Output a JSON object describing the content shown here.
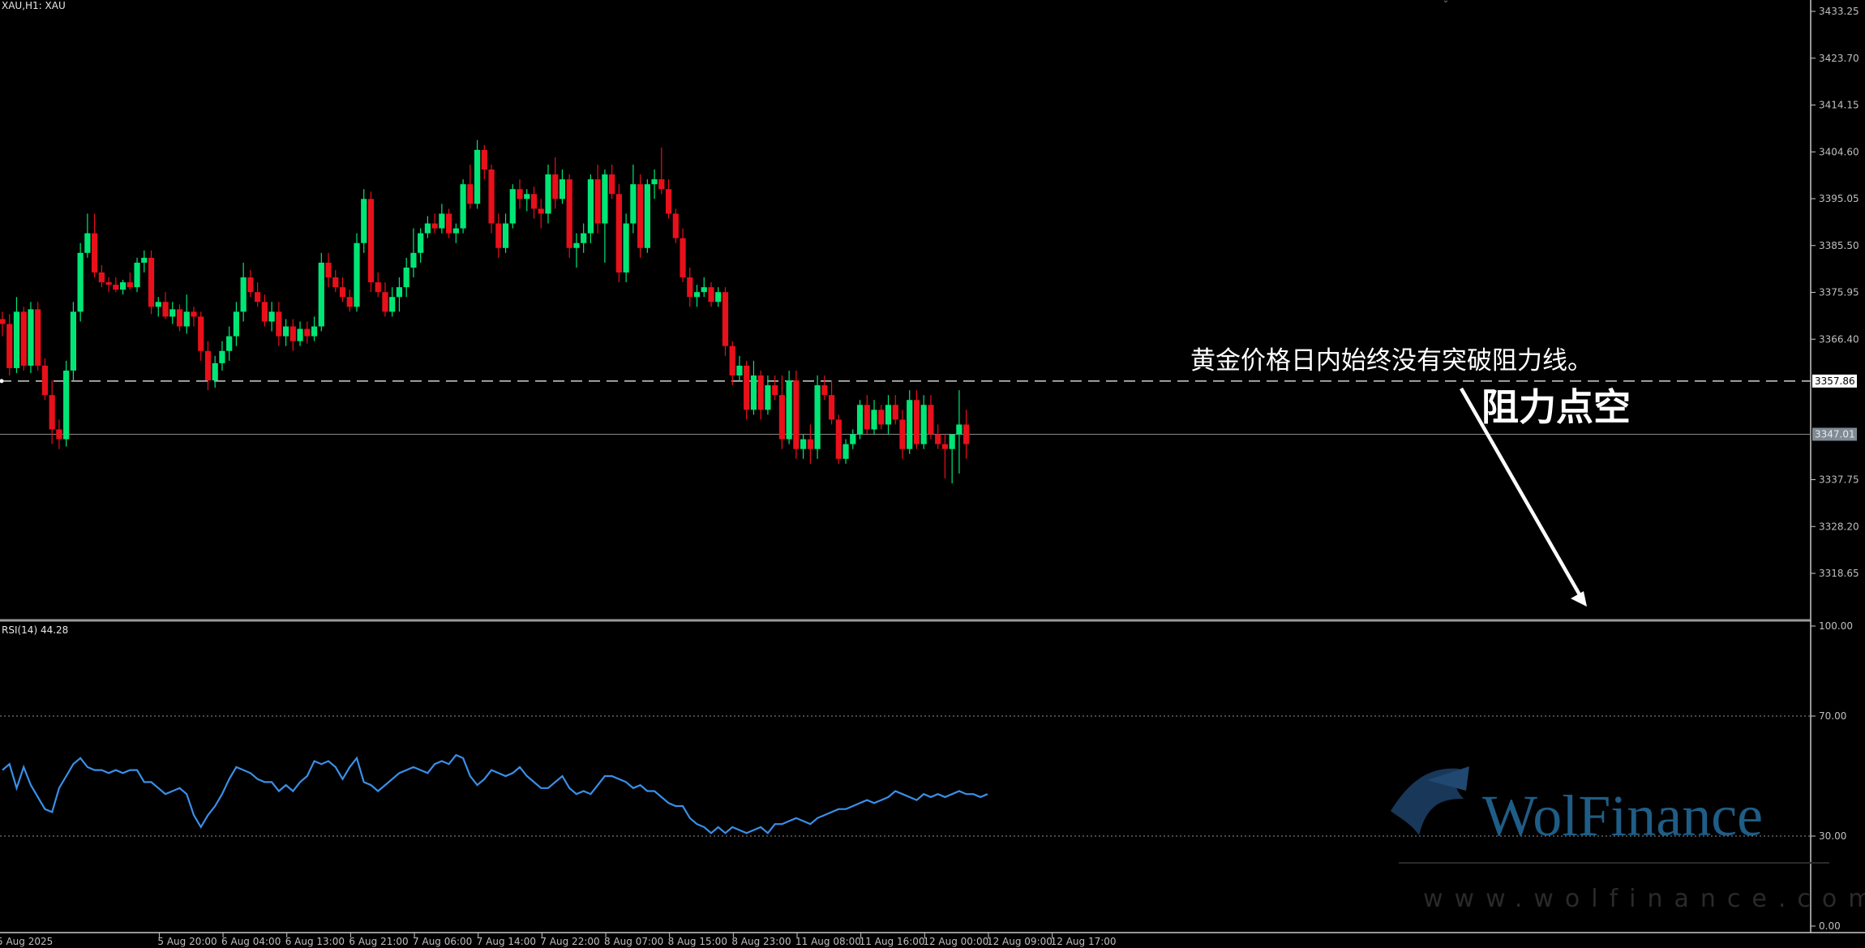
{
  "main_label": "XAU,H1:  XAU",
  "rsi_label": "RSI(14) 44.28",
  "annotation_line1": "黄金价格日内始终没有突破阻力线。",
  "annotation_line2": "阻力点空",
  "watermark_brand": "WolFinance",
  "watermark_url": "www.wolfinance.com",
  "price_axis_ticks": [
    "3433.25",
    "3423.70",
    "3414.15",
    "3404.60",
    "3395.05",
    "3385.50",
    "3375.95",
    "3366.40",
    "3337.75",
    "3328.20",
    "3318.65"
  ],
  "rsi_axis_ticks": [
    "100.00",
    "70.00",
    "30.00",
    "0.00"
  ],
  "resistance_price": "3357.86",
  "current_price": "3347.01",
  "time_axis_labels": [
    "5 Aug 2025",
    "5 Aug 20:00",
    "6 Aug 04:00",
    "6 Aug 13:00",
    "6 Aug 21:00",
    "7 Aug 06:00",
    "7 Aug 14:00",
    "7 Aug 22:00",
    "8 Aug 07:00",
    "8 Aug 15:00",
    "8 Aug 23:00",
    "11 Aug 08:00",
    "11 Aug 16:00",
    "12 Aug 00:00",
    "12 Aug 09:00",
    "12 Aug 17:00"
  ],
  "colors": {
    "background": "#000000",
    "bull": "#00e676",
    "bear": "#e8101a",
    "rsi_line": "#3a8fe8",
    "axis_text": "#bfbfbf",
    "watermark": "#1f5d86"
  },
  "icons": [
    "resistance-dashed-line",
    "down-arrow"
  ],
  "chart_data": [
    {
      "type": "candlestick",
      "title": "XAU,H1:  XAU",
      "xlabel": "",
      "ylabel": "",
      "ylim": [
        3309.1,
        3437.0
      ],
      "resistance_line": 3357.86,
      "current_price_line": 3347.01,
      "ohlc": [
        [
          3370.5,
          3372.0,
          3367.0,
          3369.5
        ],
        [
          3369.5,
          3371.5,
          3359.0,
          3360.5
        ],
        [
          3360.5,
          3375.0,
          3359.5,
          3372.0
        ],
        [
          3372.0,
          3373.0,
          3360.0,
          3361.0
        ],
        [
          3361.0,
          3374.0,
          3359.5,
          3372.5
        ],
        [
          3372.5,
          3374.0,
          3360.0,
          3361.0
        ],
        [
          3361.0,
          3362.5,
          3354.0,
          3355.0
        ],
        [
          3355.0,
          3358.0,
          3345.0,
          3348.0
        ],
        [
          3348.0,
          3350.0,
          3344.0,
          3346.0
        ],
        [
          3346.0,
          3362.0,
          3344.5,
          3360.0
        ],
        [
          3360.0,
          3374.0,
          3358.0,
          3372.0
        ],
        [
          3372.0,
          3386.0,
          3370.0,
          3384.0
        ],
        [
          3384.0,
          3392.0,
          3383.0,
          3388.0
        ],
        [
          3388.0,
          3392.0,
          3379.0,
          3380.0
        ],
        [
          3380.0,
          3381.5,
          3377.0,
          3378.0
        ],
        [
          3378.0,
          3379.0,
          3376.0,
          3377.5
        ],
        [
          3377.5,
          3379.0,
          3376.0,
          3376.5
        ],
        [
          3376.5,
          3378.5,
          3375.5,
          3378.0
        ],
        [
          3378.0,
          3380.0,
          3376.5,
          3377.0
        ],
        [
          3377.0,
          3383.0,
          3376.0,
          3382.0
        ],
        [
          3382.0,
          3384.5,
          3380.0,
          3383.0
        ],
        [
          3383.0,
          3384.5,
          3371.5,
          3373.0
        ],
        [
          3373.0,
          3375.0,
          3371.0,
          3374.0
        ],
        [
          3374.0,
          3376.0,
          3370.5,
          3371.0
        ],
        [
          3371.0,
          3374.0,
          3369.5,
          3372.5
        ],
        [
          3372.5,
          3373.5,
          3368.0,
          3369.0
        ],
        [
          3369.0,
          3375.5,
          3367.5,
          3372.0
        ],
        [
          3372.0,
          3373.0,
          3369.0,
          3371.0
        ],
        [
          3371.0,
          3372.0,
          3362.0,
          3364.0
        ],
        [
          3364.0,
          3366.0,
          3356.0,
          3358.0
        ],
        [
          3358.0,
          3363.0,
          3356.5,
          3361.5
        ],
        [
          3361.5,
          3366.0,
          3360.0,
          3364.0
        ],
        [
          3364.0,
          3369.0,
          3362.0,
          3367.0
        ],
        [
          3367.0,
          3374.0,
          3365.0,
          3372.0
        ],
        [
          3372.0,
          3382.0,
          3370.0,
          3379.0
        ],
        [
          3379.0,
          3380.5,
          3375.0,
          3376.0
        ],
        [
          3376.0,
          3378.0,
          3373.0,
          3374.0
        ],
        [
          3374.0,
          3375.5,
          3369.0,
          3370.0
        ],
        [
          3370.0,
          3374.0,
          3368.0,
          3372.0
        ],
        [
          3372.0,
          3374.0,
          3365.0,
          3367.0
        ],
        [
          3367.0,
          3370.5,
          3365.0,
          3369.0
        ],
        [
          3369.0,
          3370.5,
          3364.0,
          3366.0
        ],
        [
          3366.0,
          3370.0,
          3365.0,
          3368.5
        ],
        [
          3368.5,
          3370.0,
          3365.5,
          3367.0
        ],
        [
          3367.0,
          3371.0,
          3366.0,
          3369.0
        ],
        [
          3369.0,
          3384.0,
          3368.0,
          3382.0
        ],
        [
          3382.0,
          3384.0,
          3377.0,
          3379.0
        ],
        [
          3379.0,
          3380.5,
          3376.0,
          3377.0
        ],
        [
          3377.0,
          3379.0,
          3374.0,
          3375.0
        ],
        [
          3375.0,
          3376.5,
          3372.0,
          3373.0
        ],
        [
          3373.0,
          3388.0,
          3372.0,
          3386.0
        ],
        [
          3386.0,
          3397.0,
          3384.0,
          3395.0
        ],
        [
          3395.0,
          3396.5,
          3376.0,
          3378.0
        ],
        [
          3378.0,
          3380.0,
          3375.0,
          3376.0
        ],
        [
          3376.0,
          3378.0,
          3371.0,
          3372.0
        ],
        [
          3372.0,
          3377.0,
          3371.0,
          3375.0
        ],
        [
          3375.0,
          3379.0,
          3372.0,
          3377.0
        ],
        [
          3377.0,
          3383.0,
          3375.0,
          3381.0
        ],
        [
          3381.0,
          3389.0,
          3379.0,
          3384.0
        ],
        [
          3384.0,
          3389.0,
          3382.0,
          3388.0
        ],
        [
          3388.0,
          3391.5,
          3387.0,
          3390.0
        ],
        [
          3390.0,
          3392.0,
          3388.0,
          3389.0
        ],
        [
          3389.0,
          3394.0,
          3388.0,
          3392.0
        ],
        [
          3392.0,
          3393.0,
          3387.0,
          3388.0
        ],
        [
          3388.0,
          3390.0,
          3386.0,
          3389.0
        ],
        [
          3389.0,
          3399.0,
          3388.0,
          3398.0
        ],
        [
          3398.0,
          3402.0,
          3393.0,
          3394.0
        ],
        [
          3394.0,
          3407.0,
          3393.0,
          3405.0
        ],
        [
          3405.0,
          3406.0,
          3399.0,
          3401.0
        ],
        [
          3401.0,
          3402.0,
          3388.0,
          3390.0
        ],
        [
          3390.0,
          3392.0,
          3383.0,
          3385.0
        ],
        [
          3385.0,
          3392.0,
          3384.0,
          3390.0
        ],
        [
          3390.0,
          3398.0,
          3389.0,
          3397.0
        ],
        [
          3397.0,
          3399.0,
          3393.0,
          3395.0
        ],
        [
          3395.0,
          3397.0,
          3392.5,
          3396.0
        ],
        [
          3396.0,
          3397.5,
          3391.0,
          3393.0
        ],
        [
          3393.0,
          3395.0,
          3389.0,
          3392.0
        ],
        [
          3392.0,
          3402.0,
          3390.0,
          3400.0
        ],
        [
          3400.0,
          3403.5,
          3393.0,
          3395.0
        ],
        [
          3395.0,
          3401.0,
          3394.0,
          3399.0
        ],
        [
          3399.0,
          3400.0,
          3383.0,
          3385.0
        ],
        [
          3385.0,
          3388.0,
          3381.0,
          3386.0
        ],
        [
          3386.0,
          3390.0,
          3384.0,
          3388.0
        ],
        [
          3388.0,
          3400.0,
          3386.0,
          3399.0
        ],
        [
          3399.0,
          3402.0,
          3388.0,
          3390.0
        ],
        [
          3390.0,
          3401.0,
          3382.0,
          3400.0
        ],
        [
          3400.0,
          3402.0,
          3395.0,
          3396.0
        ],
        [
          3396.0,
          3398.0,
          3378.0,
          3380.0
        ],
        [
          3380.0,
          3392.0,
          3378.0,
          3390.0
        ],
        [
          3390.0,
          3402.0,
          3388.0,
          3398.0
        ],
        [
          3398.0,
          3400.0,
          3383.0,
          3385.0
        ],
        [
          3385.0,
          3399.0,
          3384.0,
          3398.0
        ],
        [
          3398.0,
          3401.0,
          3395.0,
          3399.0
        ],
        [
          3399.0,
          3405.5,
          3396.0,
          3397.0
        ],
        [
          3397.0,
          3399.0,
          3391.0,
          3392.0
        ],
        [
          3392.0,
          3393.0,
          3386.0,
          3387.0
        ],
        [
          3387.0,
          3389.0,
          3378.0,
          3379.0
        ],
        [
          3379.0,
          3381.0,
          3373.0,
          3375.0
        ],
        [
          3375.0,
          3377.5,
          3373.0,
          3376.0
        ],
        [
          3376.0,
          3379.0,
          3375.0,
          3377.0
        ],
        [
          3377.0,
          3378.0,
          3373.0,
          3374.0
        ],
        [
          3374.0,
          3377.0,
          3373.0,
          3376.0
        ],
        [
          3376.0,
          3377.0,
          3363.0,
          3365.0
        ],
        [
          3365.0,
          3366.0,
          3357.0,
          3359.0
        ],
        [
          3359.0,
          3363.0,
          3358.0,
          3361.0
        ],
        [
          3361.0,
          3362.0,
          3350.0,
          3352.0
        ],
        [
          3352.0,
          3362.0,
          3351.0,
          3359.0
        ],
        [
          3359.0,
          3360.0,
          3350.0,
          3352.0
        ],
        [
          3352.0,
          3359.0,
          3351.0,
          3357.0
        ],
        [
          3357.0,
          3359.0,
          3354.0,
          3355.0
        ],
        [
          3355.0,
          3359.0,
          3344.0,
          3346.0
        ],
        [
          3346.0,
          3360.0,
          3345.0,
          3358.0
        ],
        [
          3358.0,
          3360.0,
          3342.0,
          3344.0
        ],
        [
          3344.0,
          3347.0,
          3342.0,
          3346.0
        ],
        [
          3346.0,
          3349.0,
          3341.0,
          3344.0
        ],
        [
          3344.0,
          3359.0,
          3342.0,
          3357.0
        ],
        [
          3357.0,
          3359.0,
          3354.0,
          3355.0
        ],
        [
          3355.0,
          3358.0,
          3349.0,
          3350.0
        ],
        [
          3350.0,
          3351.0,
          3341.0,
          3342.0
        ],
        [
          3342.0,
          3346.0,
          3341.0,
          3345.0
        ],
        [
          3345.0,
          3348.0,
          3344.0,
          3347.0
        ],
        [
          3347.0,
          3354.0,
          3346.0,
          3353.0
        ],
        [
          3353.0,
          3355.0,
          3347.0,
          3348.0
        ],
        [
          3348.0,
          3354.0,
          3347.0,
          3352.0
        ],
        [
          3352.0,
          3353.0,
          3348.0,
          3349.0
        ],
        [
          3349.0,
          3355.0,
          3347.0,
          3353.0
        ],
        [
          3353.0,
          3355.0,
          3349.0,
          3350.0
        ],
        [
          3350.0,
          3352.0,
          3342.0,
          3344.0
        ],
        [
          3344.0,
          3356.0,
          3343.0,
          3354.0
        ],
        [
          3354.0,
          3356.0,
          3344.0,
          3345.0
        ],
        [
          3345.0,
          3355.0,
          3344.0,
          3353.0
        ],
        [
          3353.0,
          3355.0,
          3346.0,
          3347.0
        ],
        [
          3347.0,
          3349.0,
          3344.0,
          3345.0
        ],
        [
          3345.0,
          3347.0,
          3338.0,
          3344.0
        ],
        [
          3344.0,
          3347.0,
          3337.0,
          3347.0
        ],
        [
          3347.0,
          3356.0,
          3339.0,
          3349.0
        ],
        [
          3349.0,
          3352.0,
          3342.0,
          3345.0
        ]
      ]
    },
    {
      "type": "line",
      "title": "RSI(14) 44.28",
      "ylim": [
        0,
        100
      ],
      "levels": [
        70,
        30
      ],
      "values": [
        52,
        54,
        46,
        53,
        47,
        43,
        39,
        38,
        46,
        50,
        54,
        56,
        53,
        52,
        52,
        51,
        52,
        51,
        52,
        52,
        48,
        48,
        46,
        44,
        45,
        46,
        44,
        37,
        33,
        37,
        40,
        44,
        49,
        53,
        52,
        51,
        49,
        48,
        48,
        45,
        47,
        45,
        48,
        50,
        55,
        54,
        55,
        53,
        49,
        53,
        56,
        48,
        47,
        45,
        47,
        49,
        51,
        52,
        53,
        52,
        51,
        54,
        55,
        54,
        57,
        56,
        50,
        47,
        49,
        52,
        51,
        50,
        51,
        53,
        50,
        48,
        46,
        46,
        48,
        50,
        46,
        44,
        45,
        44,
        47,
        50,
        50,
        49,
        48,
        46,
        47,
        45,
        45,
        43,
        41,
        40,
        40,
        36,
        34,
        33,
        31,
        33,
        31,
        33,
        32,
        31,
        32,
        33,
        31,
        34,
        34,
        35,
        36,
        35,
        34,
        36,
        37,
        38,
        39,
        39,
        40,
        41,
        42,
        41,
        42,
        43,
        45,
        44,
        43,
        42,
        44,
        43,
        44,
        43,
        44,
        45,
        44,
        44,
        43,
        44
      ]
    }
  ]
}
